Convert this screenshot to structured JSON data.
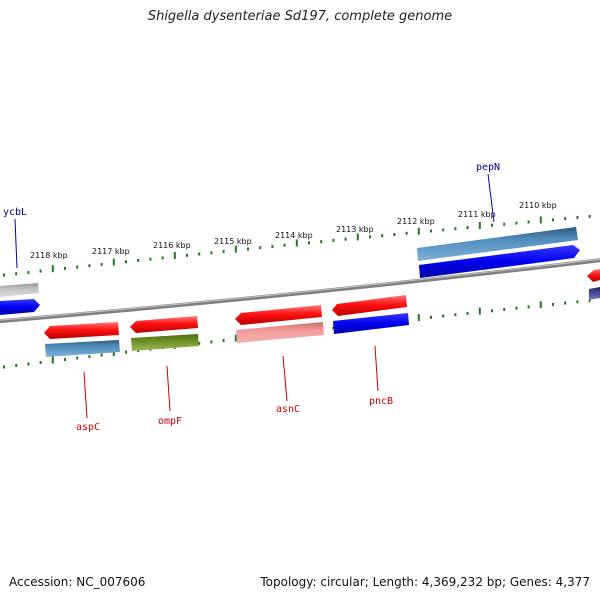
{
  "title": "Shigella dysenteriae Sd197, complete genome",
  "footer": {
    "accession": "Accession: NC_007606",
    "summary": "Topology: circular; Length: 4,369,232 bp; Genes: 4,377"
  },
  "colors": {
    "backbone": "#808080",
    "tick": "#1f7a1f",
    "label_forward": "#00008b",
    "label_reverse": "#cc0000"
  },
  "ticks": [
    {
      "label": "2118 kbp"
    },
    {
      "label": "2117 kbp"
    },
    {
      "label": "2116 kbp"
    },
    {
      "label": "2115 kbp"
    },
    {
      "label": "2114 kbp"
    },
    {
      "label": "2113 kbp"
    },
    {
      "label": "2112 kbp"
    },
    {
      "label": "2111 kbp"
    },
    {
      "label": "2110 kbp"
    }
  ],
  "gene_labels": [
    {
      "name": "ycbL",
      "strand": "forward"
    },
    {
      "name": "pepN",
      "strand": "forward"
    },
    {
      "name": "aspC",
      "strand": "reverse"
    },
    {
      "name": "ompF",
      "strand": "reverse"
    },
    {
      "name": "asnC",
      "strand": "reverse"
    },
    {
      "name": "pncB",
      "strand": "reverse"
    }
  ]
}
